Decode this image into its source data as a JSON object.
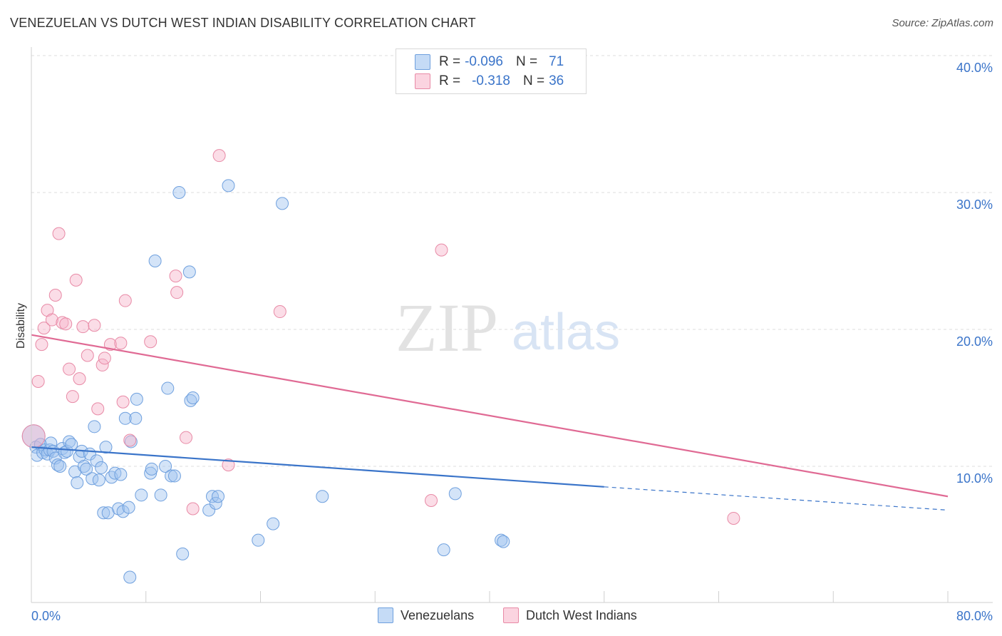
{
  "title": "VENEZUELAN VS DUTCH WEST INDIAN DISABILITY CORRELATION CHART",
  "source": "Source: ZipAtlas.com",
  "watermark": {
    "zip": "ZIP",
    "atlas": "atlas"
  },
  "legend": {
    "rows": [
      {
        "r_label": "R =",
        "r_value": "-0.096",
        "n_label": "N =",
        "n_value": "71",
        "color": "#a8c8f0",
        "border": "#6fa0de"
      },
      {
        "r_label": "R =",
        "r_value": "-0.318",
        "n_label": "N =",
        "n_value": "36",
        "color": "#f7c0d0",
        "border": "#e88aa6"
      }
    ]
  },
  "bottom_legend": {
    "venezuelans": "Venezuelans",
    "dutch": "Dutch West Indians"
  },
  "chart_data": {
    "type": "scatter",
    "xlabel": "",
    "ylabel": "Disability",
    "xlim": [
      0,
      80
    ],
    "ylim": [
      0,
      40
    ],
    "x_tick_labels": [
      "0.0%",
      "80.0%"
    ],
    "y_ticks": [
      10,
      20,
      30,
      40
    ],
    "y_tick_labels": [
      "10.0%",
      "20.0%",
      "30.0%",
      "40.0%"
    ],
    "grid": true,
    "colors": {
      "venezuelans": "#3a74c9",
      "dutch": "#e06a94"
    },
    "series": [
      {
        "name": "Venezuelans",
        "points": [
          [
            0.2,
            12.2
          ],
          [
            0.4,
            11.4
          ],
          [
            0.5,
            10.8
          ],
          [
            0.8,
            11.6
          ],
          [
            1.0,
            11.0
          ],
          [
            1.2,
            11.2
          ],
          [
            1.4,
            10.9
          ],
          [
            1.6,
            11.2
          ],
          [
            1.7,
            11.7
          ],
          [
            1.9,
            11.1
          ],
          [
            2.1,
            10.6
          ],
          [
            2.3,
            10.1
          ],
          [
            2.5,
            10.0
          ],
          [
            2.7,
            11.3
          ],
          [
            2.9,
            11.0
          ],
          [
            3.1,
            11.1
          ],
          [
            3.3,
            11.8
          ],
          [
            3.5,
            11.6
          ],
          [
            3.8,
            9.6
          ],
          [
            4.0,
            8.8
          ],
          [
            4.2,
            10.7
          ],
          [
            4.4,
            11.1
          ],
          [
            4.6,
            10.0
          ],
          [
            4.8,
            9.8
          ],
          [
            5.1,
            10.9
          ],
          [
            5.3,
            9.1
          ],
          [
            5.5,
            12.9
          ],
          [
            5.7,
            10.4
          ],
          [
            5.9,
            9.0
          ],
          [
            6.1,
            9.9
          ],
          [
            6.3,
            6.6
          ],
          [
            6.5,
            11.4
          ],
          [
            6.7,
            6.6
          ],
          [
            7.0,
            9.2
          ],
          [
            7.3,
            9.5
          ],
          [
            7.6,
            6.9
          ],
          [
            7.8,
            9.4
          ],
          [
            8.0,
            6.7
          ],
          [
            8.2,
            13.5
          ],
          [
            8.5,
            7.0
          ],
          [
            8.7,
            11.8
          ],
          [
            9.1,
            13.5
          ],
          [
            9.2,
            14.9
          ],
          [
            9.6,
            7.9
          ],
          [
            10.4,
            9.5
          ],
          [
            10.5,
            9.8
          ],
          [
            10.8,
            25.0
          ],
          [
            11.3,
            7.9
          ],
          [
            11.7,
            10.0
          ],
          [
            11.9,
            15.7
          ],
          [
            12.2,
            9.3
          ],
          [
            12.5,
            9.3
          ],
          [
            12.9,
            30.0
          ],
          [
            13.2,
            3.6
          ],
          [
            13.8,
            24.2
          ],
          [
            13.9,
            14.8
          ],
          [
            14.1,
            15.0
          ],
          [
            15.5,
            6.8
          ],
          [
            15.8,
            7.8
          ],
          [
            16.1,
            7.3
          ],
          [
            16.3,
            7.8
          ],
          [
            17.2,
            30.5
          ],
          [
            19.8,
            4.6
          ],
          [
            21.1,
            5.8
          ],
          [
            21.9,
            29.2
          ],
          [
            25.4,
            7.8
          ],
          [
            36.0,
            3.9
          ],
          [
            37.0,
            8.0
          ],
          [
            41.0,
            4.6
          ],
          [
            41.2,
            4.5
          ],
          [
            8.6,
            1.9
          ]
        ]
      },
      {
        "name": "Dutch West Indians",
        "points": [
          [
            0.2,
            12.2
          ],
          [
            0.6,
            16.2
          ],
          [
            0.9,
            18.9
          ],
          [
            1.1,
            20.1
          ],
          [
            1.4,
            21.4
          ],
          [
            1.8,
            20.7
          ],
          [
            2.1,
            22.5
          ],
          [
            2.4,
            27.0
          ],
          [
            2.7,
            20.5
          ],
          [
            3.0,
            20.4
          ],
          [
            3.3,
            17.1
          ],
          [
            3.6,
            15.1
          ],
          [
            3.9,
            23.6
          ],
          [
            4.2,
            16.4
          ],
          [
            4.5,
            20.2
          ],
          [
            4.9,
            18.1
          ],
          [
            5.5,
            20.3
          ],
          [
            5.8,
            14.2
          ],
          [
            6.2,
            17.4
          ],
          [
            6.4,
            17.9
          ],
          [
            6.9,
            18.9
          ],
          [
            7.8,
            19.0
          ],
          [
            8.0,
            14.7
          ],
          [
            8.2,
            22.1
          ],
          [
            8.6,
            11.9
          ],
          [
            10.4,
            19.1
          ],
          [
            12.6,
            23.9
          ],
          [
            12.7,
            22.7
          ],
          [
            13.5,
            12.1
          ],
          [
            14.1,
            6.9
          ],
          [
            16.4,
            32.7
          ],
          [
            17.2,
            10.1
          ],
          [
            21.7,
            21.3
          ],
          [
            34.9,
            7.5
          ],
          [
            35.8,
            25.8
          ],
          [
            61.3,
            6.2
          ]
        ]
      }
    ],
    "trendlines": [
      {
        "series": "Venezuelans",
        "solid": [
          [
            0,
            11.4
          ],
          [
            50,
            8.5
          ]
        ],
        "dashed": [
          [
            50,
            8.5
          ],
          [
            80,
            6.8
          ]
        ]
      },
      {
        "series": "Dutch West Indians",
        "solid": [
          [
            0,
            19.6
          ],
          [
            80,
            7.8
          ]
        ]
      }
    ]
  }
}
